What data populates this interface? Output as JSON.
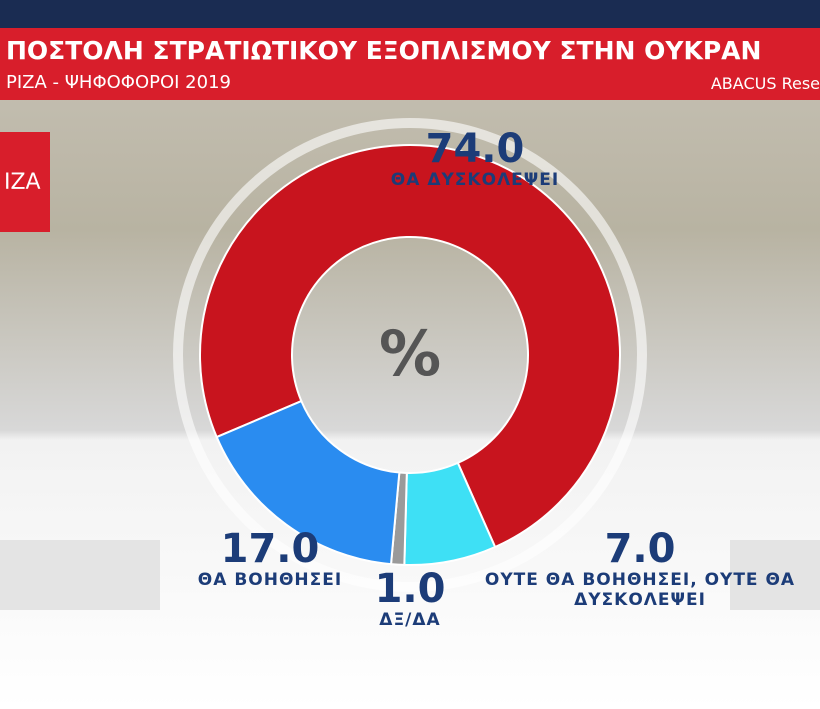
{
  "logo": "ΙΖΑ",
  "chart_data": {
    "type": "pie",
    "title": "ΠΟΣΤΟΛΗ ΣΤΡΑΤΙΩΤΙΚΟΥ ΕΞΟΠΛΙΣΜΟΥ ΣΤΗΝ ΟΥΚΡΑΝ",
    "subtitle": "ΡΙΖΑ - ΨΗΦΟΦΟΡΟΙ 2019",
    "source": "ABACUS Rese",
    "center_label": "%",
    "categories": [
      "ΘΑ ΔΥΣΚΟΛΕΨΕΙ",
      "ΟΥΤΕ ΘΑ ΒΟΗΘΗΣΕΙ, ΟΥΤΕ ΘΑ ΔΥΣΚΟΛΕΨΕΙ",
      "ΔΞ/ΔΑ",
      "ΘΑ ΒΟΗΘΗΣΕΙ"
    ],
    "values": [
      74.0,
      7.0,
      1.0,
      17.0
    ],
    "value_labels": [
      "74.0",
      "7.0",
      "1.0",
      "17.0"
    ],
    "colors": [
      "#c8141e",
      "#3ee0f5",
      "#9a9a9a",
      "#2a8cf0"
    ]
  }
}
